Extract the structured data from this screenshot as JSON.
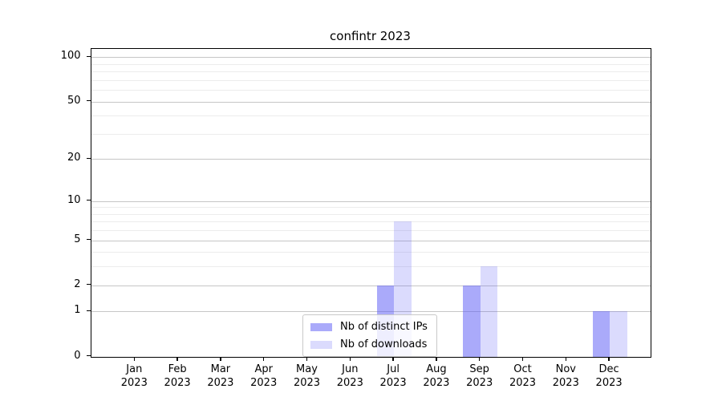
{
  "chart_data": {
    "type": "bar",
    "title": "confintr 2023",
    "categories": [
      "Jan 2023",
      "Feb 2023",
      "Mar 2023",
      "Apr 2023",
      "May 2023",
      "Jun 2023",
      "Jul 2023",
      "Aug 2023",
      "Sep 2023",
      "Oct 2023",
      "Nov 2023",
      "Dec 2023"
    ],
    "series": [
      {
        "name": "Nb of distinct IPs",
        "color": "rgba(85,85,245,0.5)",
        "values": [
          0,
          0,
          0,
          0,
          0,
          0,
          2,
          0,
          2,
          0,
          0,
          1
        ]
      },
      {
        "name": "Nb of downloads",
        "color": "rgba(85,85,245,0.21)",
        "values": [
          0,
          0,
          0,
          0,
          0,
          0,
          7,
          0,
          3,
          0,
          0,
          1
        ]
      }
    ],
    "xlabel": "",
    "ylabel": "",
    "yscale": "log1p",
    "yticks": [
      0,
      1,
      2,
      5,
      10,
      20,
      50,
      100
    ],
    "minor_gridlines": [
      3,
      4,
      6,
      7,
      8,
      9,
      30,
      40,
      60,
      70,
      80,
      90
    ],
    "ylim": [
      0,
      114
    ],
    "grid": "horizontal",
    "legend_position": "lower-center-inside",
    "colors": {
      "major_grid": "#c6c6c6",
      "minor_grid": "#ececec",
      "axis": "#000000",
      "background": "#ffffff"
    }
  }
}
